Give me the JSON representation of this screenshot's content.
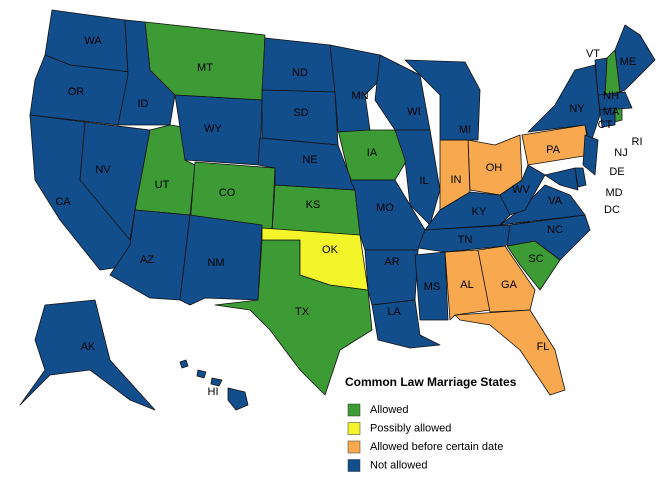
{
  "title": "Common Law Marriage States",
  "categories": [
    {
      "label": "Allowed",
      "color": "#3d9b35",
      "states": [
        "MT",
        "UT",
        "CO",
        "KS",
        "IA",
        "TX",
        "SC",
        "NH",
        "RI",
        "DC"
      ]
    },
    {
      "label": "Possibly allowed",
      "color": "#f4f42a",
      "states": [
        "OK"
      ]
    },
    {
      "label": "Allowed before certain date",
      "color": "#f8a84e",
      "states": [
        "PA",
        "OH",
        "IN",
        "AL",
        "GA",
        "FL"
      ]
    },
    {
      "label": "Not allowed",
      "color": "#124e8c",
      "states": [
        "WA",
        "OR",
        "CA",
        "NV",
        "ID",
        "WY",
        "AZ",
        "NM",
        "ND",
        "SD",
        "NE",
        "MN",
        "MO",
        "AR",
        "LA",
        "WI",
        "IL",
        "MI",
        "KY",
        "TN",
        "MS",
        "NC",
        "VA",
        "WV",
        "NY",
        "VT",
        "ME",
        "MA",
        "CT",
        "NJ",
        "DE",
        "MD",
        "AK",
        "HI"
      ]
    }
  ]
}
